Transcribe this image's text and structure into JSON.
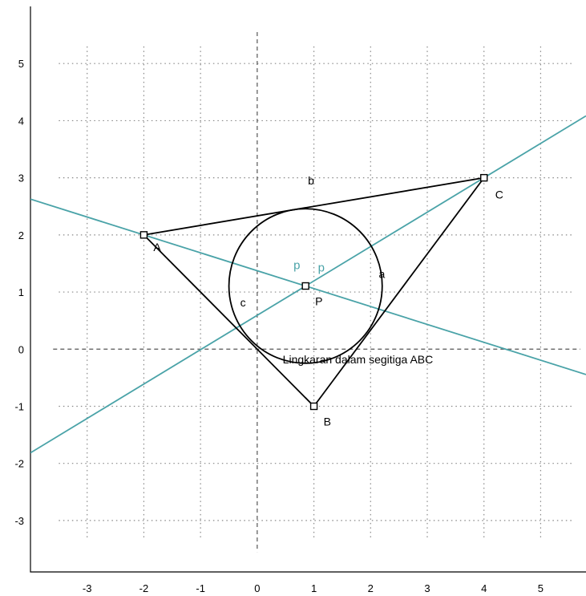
{
  "chart_data": {
    "type": "diagram",
    "title": "",
    "xlabel": "",
    "ylabel": "",
    "xlim": [
      -4.0,
      5.8
    ],
    "ylim": [
      -3.9,
      6.0
    ],
    "x_ticks": [
      -3,
      -2,
      -1,
      0,
      1,
      2,
      3,
      4,
      5
    ],
    "y_ticks": [
      -3,
      -2,
      -1,
      0,
      1,
      2,
      3,
      4,
      5
    ],
    "grid": true,
    "axes_dashed": true,
    "colors": {
      "triangle": "#000000",
      "bisectors": "#4aa3a8",
      "grid": "#888888",
      "axis_lines": "#555555"
    },
    "points": [
      {
        "name": "A",
        "x": -2,
        "y": 2
      },
      {
        "name": "B",
        "x": 1,
        "y": -1
      },
      {
        "name": "C",
        "x": 4,
        "y": 3
      },
      {
        "name": "P",
        "x": 0.853,
        "y": 1.106
      }
    ],
    "triangle": [
      "A",
      "B",
      "C"
    ],
    "side_labels": [
      {
        "text": "a",
        "x": 2.2,
        "y": 1.25
      },
      {
        "text": "b",
        "x": 0.95,
        "y": 2.88
      },
      {
        "text": "c",
        "x": -0.25,
        "y": 0.75
      }
    ],
    "incircle": {
      "cx": 0.853,
      "cy": 1.106,
      "r": 1.352
    },
    "bisectors": [
      {
        "label": "p",
        "through": [
          "A",
          "P"
        ],
        "label_x": 0.7,
        "label_y": 1.4
      },
      {
        "label": "p",
        "through": [
          "C",
          "P"
        ],
        "label_x": 1.13,
        "label_y": 1.36
      }
    ],
    "annotation": {
      "text": "Lingkaran dalam segitiga ABC",
      "x": 0.45,
      "y": -0.25
    }
  }
}
